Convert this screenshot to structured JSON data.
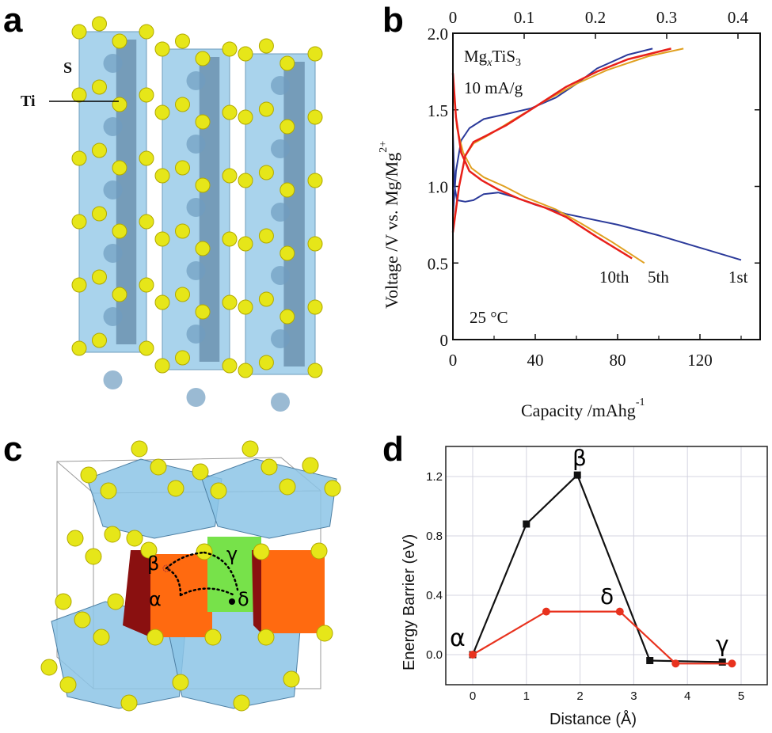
{
  "panels": {
    "a": {
      "label": "a",
      "atom_labels": {
        "s": "S",
        "ti": "Ti"
      }
    },
    "b": {
      "label": "b"
    },
    "c": {
      "label": "c",
      "site_labels": {
        "alpha": "α",
        "beta": "β",
        "gamma": "γ",
        "delta": "δ"
      }
    },
    "d": {
      "label": "d"
    }
  },
  "colors": {
    "sulfur": "#e6e619",
    "polyhedron_blue": "#8cc4e6",
    "orange": "#ff6a10",
    "green": "#77e24a"
  },
  "chart_data": [
    {
      "panel": "b",
      "type": "line",
      "xlabel": "Capacity /mAhg",
      "xlabel_sup": "-1",
      "ylabel": "Voltage /V vs. Mg/Mg",
      "ylabel_sup": "2+",
      "xlim": [
        0,
        149
      ],
      "ylim": [
        0,
        2.0
      ],
      "xticks": [
        "0",
        "40",
        "80",
        "120"
      ],
      "xtick_values": [
        0,
        40,
        80,
        120
      ],
      "yticks": [
        "0",
        "0.5",
        "1.0",
        "1.5",
        "2.0"
      ],
      "ytick_values": [
        0,
        0.5,
        1.0,
        1.5,
        2.0
      ],
      "top_axis": {
        "ticks": [
          "0",
          "0.1",
          "0.2",
          "0.3",
          "0.4"
        ],
        "tick_values": [
          0,
          0.1,
          0.2,
          0.3,
          0.4
        ],
        "lim": [
          0,
          0.414
        ]
      },
      "annotations": {
        "formula_main": "Mg",
        "formula_sub_x": "x",
        "formula_mid": "TiS",
        "formula_sub_3": "3",
        "rate": "10 mA/g",
        "temperature": "25 °C"
      },
      "series": [
        {
          "name": "1st",
          "color": "#2b3a9a",
          "discharge": [
            [
              0,
              1.35
            ],
            [
              0.8,
              1.0
            ],
            [
              2,
              0.91
            ],
            [
              6,
              0.9
            ],
            [
              10,
              0.91
            ],
            [
              15,
              0.95
            ],
            [
              22,
              0.96
            ],
            [
              30,
              0.93
            ],
            [
              40,
              0.88
            ],
            [
              55,
              0.82
            ],
            [
              80,
              0.75
            ],
            [
              100,
              0.68
            ],
            [
              120,
              0.6
            ],
            [
              140,
              0.52
            ]
          ],
          "charge": [
            [
              0,
              0.8
            ],
            [
              1.5,
              1.1
            ],
            [
              4,
              1.3
            ],
            [
              8,
              1.38
            ],
            [
              15,
              1.44
            ],
            [
              25,
              1.47
            ],
            [
              38,
              1.51
            ],
            [
              50,
              1.58
            ],
            [
              60,
              1.67
            ],
            [
              70,
              1.77
            ],
            [
              85,
              1.86
            ],
            [
              97,
              1.9
            ]
          ]
        },
        {
          "name": "5th",
          "color": "#e0a020",
          "discharge": [
            [
              0,
              1.66
            ],
            [
              2,
              1.38
            ],
            [
              5,
              1.22
            ],
            [
              9,
              1.12
            ],
            [
              15,
              1.06
            ],
            [
              25,
              1.0
            ],
            [
              35,
              0.93
            ],
            [
              50,
              0.85
            ],
            [
              62,
              0.76
            ],
            [
              77,
              0.64
            ],
            [
              93,
              0.5
            ]
          ],
          "charge": [
            [
              0,
              0.72
            ],
            [
              3,
              1.0
            ],
            [
              6,
              1.2
            ],
            [
              10,
              1.28
            ],
            [
              18,
              1.34
            ],
            [
              30,
              1.44
            ],
            [
              45,
              1.56
            ],
            [
              60,
              1.67
            ],
            [
              75,
              1.76
            ],
            [
              95,
              1.85
            ],
            [
              112,
              1.9
            ]
          ]
        },
        {
          "name": "10th",
          "color": "#e8201a",
          "discharge": [
            [
              0,
              1.74
            ],
            [
              1.5,
              1.45
            ],
            [
              4,
              1.22
            ],
            [
              8,
              1.1
            ],
            [
              14,
              1.04
            ],
            [
              22,
              0.98
            ],
            [
              32,
              0.92
            ],
            [
              45,
              0.86
            ],
            [
              55,
              0.8
            ],
            [
              70,
              0.67
            ],
            [
              87,
              0.53
            ]
          ],
          "charge": [
            [
              0,
              0.7
            ],
            [
              3,
              1.0
            ],
            [
              6,
              1.2
            ],
            [
              10,
              1.29
            ],
            [
              16,
              1.33
            ],
            [
              26,
              1.4
            ],
            [
              40,
              1.52
            ],
            [
              55,
              1.65
            ],
            [
              70,
              1.75
            ],
            [
              85,
              1.83
            ],
            [
              106,
              1.9
            ]
          ]
        }
      ],
      "series_labels": [
        "10th",
        "5th",
        "1st"
      ]
    },
    {
      "panel": "d",
      "type": "line",
      "xlabel": "Distance (Å)",
      "ylabel": "Energy Barrier (eV)",
      "xlim": [
        -0.5,
        5.5
      ],
      "ylim": [
        -0.2,
        1.4
      ],
      "grid": true,
      "xticks": [
        "0",
        "1",
        "2",
        "3",
        "4",
        "5"
      ],
      "xtick_values": [
        0,
        1,
        2,
        3,
        4,
        5
      ],
      "yticks": [
        "0.0",
        "0.4",
        "0.8",
        "1.2"
      ],
      "ytick_values": [
        0.0,
        0.4,
        0.8,
        1.2
      ],
      "series": [
        {
          "color": "#111111",
          "marker": "square",
          "x": [
            0,
            1,
            1.95,
            3.3,
            4.65
          ],
          "y": [
            0,
            0.88,
            1.21,
            -0.04,
            -0.05
          ]
        },
        {
          "color": "#e8321e",
          "marker": "circle",
          "x": [
            0,
            1.37,
            2.74,
            3.78,
            4.83
          ],
          "y": [
            0,
            0.29,
            0.29,
            -0.06,
            -0.06
          ]
        }
      ],
      "point_labels": {
        "alpha": "α",
        "beta": "β",
        "gamma": "γ",
        "delta": "δ"
      }
    }
  ]
}
